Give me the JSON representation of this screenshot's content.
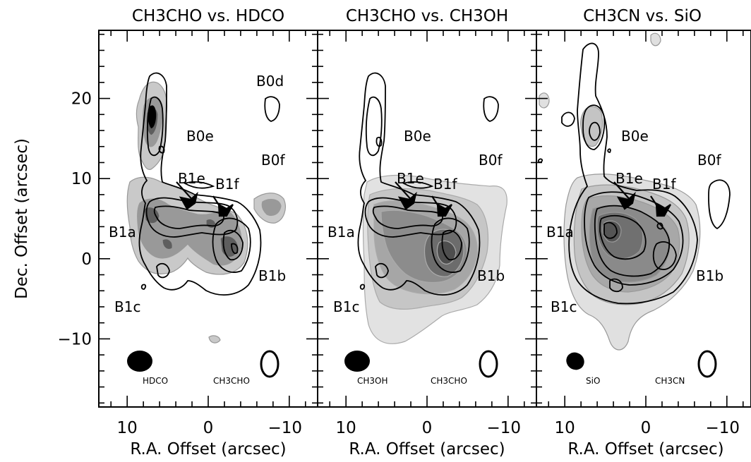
{
  "figure": {
    "ylabel": "Dec. Offset (arcsec)",
    "xlabel": "R.A. Offset (arcsec)"
  },
  "chart_data": [
    {
      "type": "contour",
      "title": "CH3CHO vs. HDCO",
      "xlabel": "R.A. Offset (arcsec)",
      "ylabel": "Dec. Offset (arcsec)",
      "xlim": [
        13.5,
        -13.5
      ],
      "ylim": [
        -18.5,
        28.5
      ],
      "x_ticks": [
        10,
        0,
        -10
      ],
      "y_ticks": [
        20,
        10,
        0,
        -10
      ],
      "filled_map": "HDCO",
      "contour_map": "CH3CHO",
      "beam_labels": [
        "HDCO",
        "CH3CHO"
      ],
      "regions": [
        {
          "name": "B0d",
          "x": -9.2,
          "y": 21.5
        },
        {
          "name": "B0e",
          "x": 1.1,
          "y": 15.0
        },
        {
          "name": "B0f",
          "x": -9.3,
          "y": 12.0
        },
        {
          "name": "B1e",
          "x": -0.4,
          "y": 9.8
        },
        {
          "name": "B1f",
          "x": -4.1,
          "y": 8.5
        },
        {
          "name": "B1a",
          "x": 9.8,
          "y": 2.7
        },
        {
          "name": "B1b",
          "x": -10.0,
          "y": -2.4
        },
        {
          "name": "B1c",
          "x": 8.3,
          "y": -6.4
        }
      ]
    },
    {
      "type": "contour",
      "title": "CH3CHO vs. CH3OH",
      "xlabel": "R.A. Offset (arcsec)",
      "xlim": [
        13.5,
        -13.5
      ],
      "ylim": [
        -18.5,
        28.5
      ],
      "x_ticks": [
        10,
        0,
        -10
      ],
      "y_ticks": [
        20,
        10,
        0,
        -10
      ],
      "filled_map": "CH3OH",
      "contour_map": "CH3CHO",
      "beam_labels": [
        "CH3OH",
        "CH3CHO"
      ],
      "regions": [
        {
          "name": "B0e",
          "x": 1.1,
          "y": 15.0
        },
        {
          "name": "B0f",
          "x": -9.3,
          "y": 12.0
        },
        {
          "name": "B1e",
          "x": -0.4,
          "y": 9.8
        },
        {
          "name": "B1f",
          "x": -4.1,
          "y": 8.5
        },
        {
          "name": "B1a",
          "x": 9.8,
          "y": 2.7
        },
        {
          "name": "B1b",
          "x": -10.0,
          "y": -2.4
        },
        {
          "name": "B1c",
          "x": 8.3,
          "y": -6.4
        }
      ]
    },
    {
      "type": "contour",
      "title": "CH3CN vs. SiO",
      "xlabel": "R.A. Offset (arcsec)",
      "xlim": [
        13.5,
        -13.5
      ],
      "ylim": [
        -18.5,
        28.5
      ],
      "x_ticks": [
        10,
        0,
        -10
      ],
      "y_ticks": [
        20,
        10,
        0,
        -10
      ],
      "filled_map": "SiO",
      "contour_map": "CH3CN",
      "beam_labels": [
        "SiO",
        "CH3CN"
      ],
      "regions": [
        {
          "name": "B0e",
          "x": 1.1,
          "y": 15.0
        },
        {
          "name": "B0f",
          "x": -9.3,
          "y": 12.0
        },
        {
          "name": "B1e",
          "x": -0.4,
          "y": 9.8
        },
        {
          "name": "B1f",
          "x": -4.1,
          "y": 8.5
        },
        {
          "name": "B1a",
          "x": 9.8,
          "y": 2.7
        },
        {
          "name": "B1b",
          "x": -10.0,
          "y": -2.4
        },
        {
          "name": "B1c",
          "x": 8.3,
          "y": -6.4
        }
      ]
    }
  ]
}
